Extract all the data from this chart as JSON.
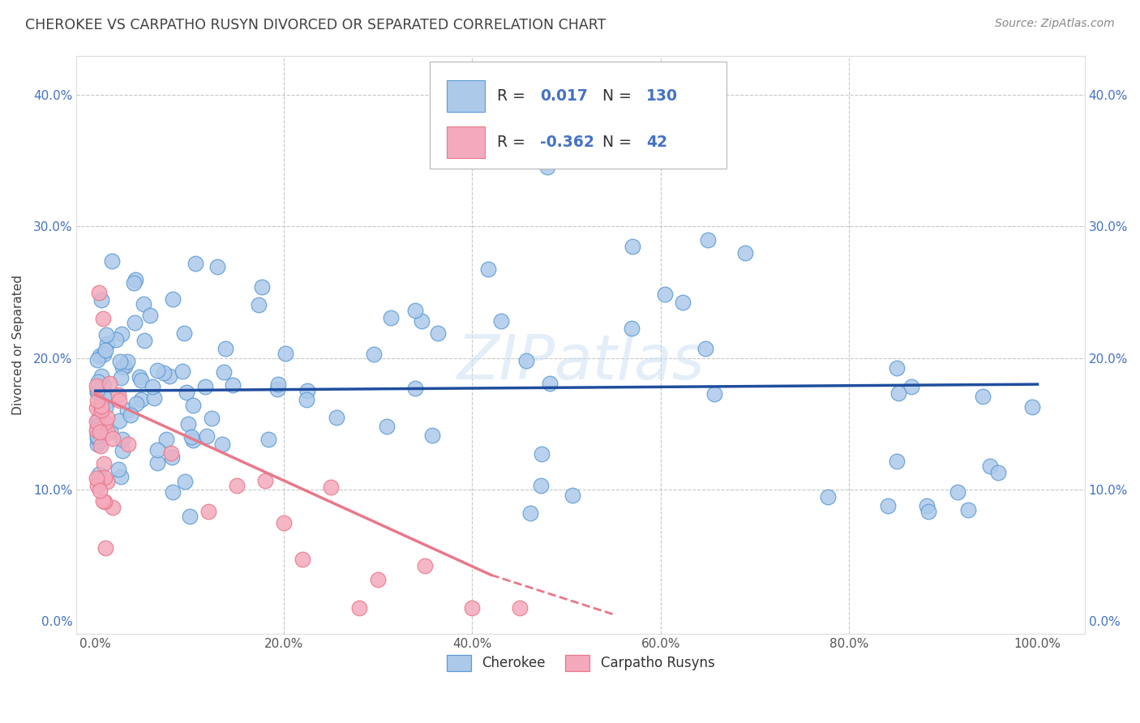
{
  "title": "CHEROKEE VS CARPATHO RUSYN DIVORCED OR SEPARATED CORRELATION CHART",
  "source": "Source: ZipAtlas.com",
  "ylabel": "Divorced or Separated",
  "xlim": [
    -2,
    105
  ],
  "ylim": [
    -1,
    43
  ],
  "legend_entries": [
    {
      "label": "Cherokee",
      "r": "0.017",
      "n": "130"
    },
    {
      "label": "Carpatho Rusyns",
      "r": "-0.362",
      "n": "42"
    }
  ],
  "watermark": "ZIPatlas",
  "blue_marker_face": "#adc9ea",
  "blue_marker_edge": "#5b9bd5",
  "pink_marker_face": "#f4aabc",
  "pink_marker_edge": "#e8788a",
  "blue_line_color": "#1f4e9e",
  "pink_line_color": "#e8788a",
  "grid_color": "#c8c8c8",
  "background_color": "#ffffff",
  "tick_color": "#4472c4",
  "title_color": "#404040",
  "source_color": "#888888",
  "ylabel_color": "#404040",
  "title_fontsize": 12.5,
  "label_fontsize": 11,
  "tick_fontsize": 11,
  "source_fontsize": 10,
  "legend_r_color": "#4472c4",
  "legend_n_color": "#4472c4",
  "legend_text_color": "#333333",
  "blue_line_x0": 0,
  "blue_line_x1": 100,
  "blue_line_y0": 17.5,
  "blue_line_y1": 18.0,
  "pink_line_x0": 0,
  "pink_line_x1": 42,
  "pink_line_y0": 17.2,
  "pink_line_y1": 3.5,
  "pink_dash_x0": 42,
  "pink_dash_x1": 55,
  "pink_dash_y0": 3.5,
  "pink_dash_y1": 0.5
}
